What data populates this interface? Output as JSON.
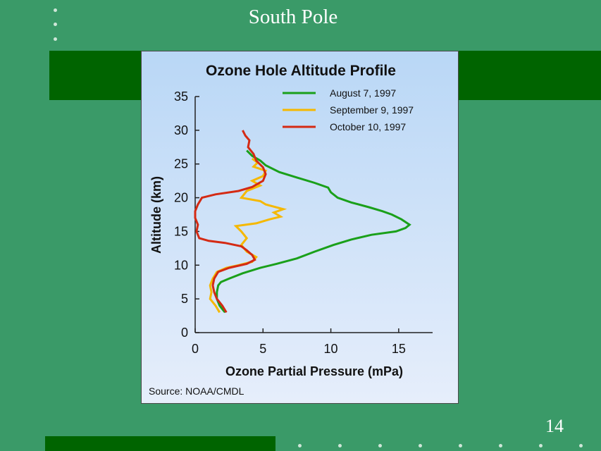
{
  "slide": {
    "title": "South Pole",
    "number": "14"
  },
  "colors": {
    "background": "#3a9a68",
    "band": "#006400",
    "dot": "#cfe6d8"
  },
  "chart_data": {
    "type": "line",
    "title": "Ozone Hole Altitude Profile",
    "xlabel": "Ozone Partial Pressure (mPa)",
    "ylabel": "Altitude (km)",
    "xlim": [
      0,
      17.5
    ],
    "ylim": [
      0,
      35
    ],
    "xticks": [
      0,
      5,
      10,
      15
    ],
    "yticks": [
      0,
      5,
      10,
      15,
      20,
      25,
      30,
      35
    ],
    "grid": false,
    "legend_position": "top-right",
    "source": "Source: NOAA/CMDL",
    "series": [
      {
        "name": "August 7, 1997",
        "color": "#1aa01a",
        "points": [
          [
            2.2,
            3
          ],
          [
            2.0,
            3.5
          ],
          [
            1.8,
            4
          ],
          [
            1.6,
            5
          ],
          [
            1.6,
            6
          ],
          [
            1.7,
            7
          ],
          [
            1.9,
            7.5
          ],
          [
            2.5,
            8
          ],
          [
            3.5,
            8.8
          ],
          [
            4.8,
            9.6
          ],
          [
            6,
            10.2
          ],
          [
            7.5,
            11
          ],
          [
            8.8,
            12
          ],
          [
            10.2,
            13
          ],
          [
            11.5,
            13.8
          ],
          [
            13,
            14.5
          ],
          [
            14.8,
            15
          ],
          [
            15.5,
            15.5
          ],
          [
            15.8,
            16
          ],
          [
            15.2,
            16.8
          ],
          [
            14.5,
            17.5
          ],
          [
            13.8,
            18
          ],
          [
            12.8,
            18.6
          ],
          [
            11.5,
            19.3
          ],
          [
            10.5,
            20
          ],
          [
            10,
            20.8
          ],
          [
            9.8,
            21.5
          ],
          [
            8.8,
            22.2
          ],
          [
            7.5,
            23
          ],
          [
            6.2,
            23.8
          ],
          [
            5.2,
            24.8
          ],
          [
            4.8,
            25.5
          ],
          [
            4.2,
            26.2
          ],
          [
            3.8,
            27
          ]
        ]
      },
      {
        "name": "September 9, 1997",
        "color": "#f5b800",
        "points": [
          [
            1.8,
            3
          ],
          [
            1.5,
            4
          ],
          [
            1.1,
            5
          ],
          [
            1.2,
            6
          ],
          [
            1.1,
            7
          ],
          [
            1.3,
            8
          ],
          [
            1.6,
            9
          ],
          [
            2.3,
            9.6
          ],
          [
            3.2,
            10
          ],
          [
            4.2,
            10.5
          ],
          [
            4.5,
            11.2
          ],
          [
            3.8,
            12
          ],
          [
            3.4,
            13
          ],
          [
            3.8,
            14
          ],
          [
            3.4,
            15
          ],
          [
            3.0,
            15.8
          ],
          [
            4.5,
            16.2
          ],
          [
            5.5,
            16.8
          ],
          [
            6.3,
            17.2
          ],
          [
            5.8,
            17.8
          ],
          [
            6.5,
            18.3
          ],
          [
            5.2,
            19
          ],
          [
            4.8,
            19.5
          ],
          [
            3.4,
            20
          ],
          [
            3.8,
            21
          ],
          [
            4.8,
            21.8
          ],
          [
            4.2,
            22.5
          ],
          [
            5.0,
            23.2
          ],
          [
            5.2,
            24
          ],
          [
            4.3,
            24.6
          ],
          [
            4.6,
            25.2
          ],
          [
            4.2,
            25.8
          ]
        ]
      },
      {
        "name": "October 10, 1997",
        "color": "#d42a14",
        "points": [
          [
            2.3,
            3
          ],
          [
            2.0,
            4
          ],
          [
            1.6,
            5
          ],
          [
            1.4,
            6
          ],
          [
            1.3,
            7
          ],
          [
            1.4,
            8
          ],
          [
            1.7,
            9
          ],
          [
            2.5,
            9.6
          ],
          [
            3.8,
            10.2
          ],
          [
            4.4,
            10.8
          ],
          [
            4.2,
            11.5
          ],
          [
            3.8,
            12.2
          ],
          [
            3.4,
            12.8
          ],
          [
            2.2,
            13.3
          ],
          [
            1.0,
            13.6
          ],
          [
            0.3,
            14
          ],
          [
            0.1,
            15
          ],
          [
            0.2,
            16
          ],
          [
            0,
            17
          ],
          [
            0,
            18
          ],
          [
            0.2,
            19
          ],
          [
            0.5,
            20
          ],
          [
            1.5,
            20.5
          ],
          [
            3.2,
            21
          ],
          [
            4.2,
            21.6
          ],
          [
            5.0,
            22.5
          ],
          [
            5.2,
            23.5
          ],
          [
            5.0,
            24.5
          ],
          [
            4.5,
            25.5
          ],
          [
            4.3,
            26.5
          ],
          [
            3.9,
            27.5
          ],
          [
            4.0,
            28.5
          ],
          [
            3.7,
            29.2
          ],
          [
            3.5,
            30
          ]
        ]
      }
    ]
  }
}
